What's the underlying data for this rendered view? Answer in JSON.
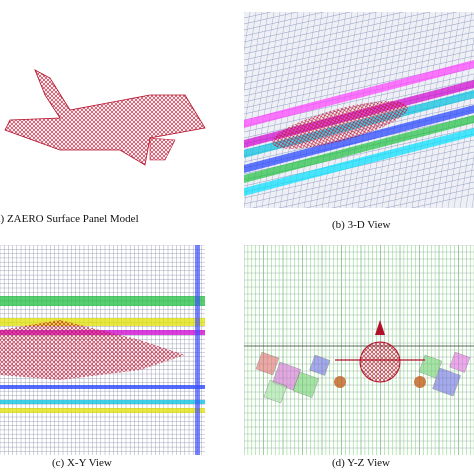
{
  "panels": [
    {
      "caption": "(a) ZAERO Surface Panel Model"
    },
    {
      "caption": "(b) 3-D View"
    },
    {
      "caption": "(c) X-Y View"
    },
    {
      "caption": "(d) Y-Z View"
    }
  ]
}
